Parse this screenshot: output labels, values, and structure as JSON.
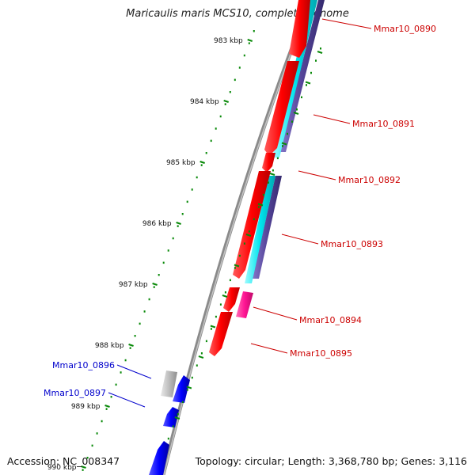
{
  "header": {
    "title": "Maricaulis maris MCS10, complete genome"
  },
  "ruler": {
    "unit_suffix": "kbp",
    "ticks": [
      {
        "kbp": 983,
        "label": "983 kbp"
      },
      {
        "kbp": 984,
        "label": "984 kbp"
      },
      {
        "kbp": 985,
        "label": "985 kbp"
      },
      {
        "kbp": 986,
        "label": "986 kbp"
      },
      {
        "kbp": 987,
        "label": "987 kbp"
      },
      {
        "kbp": 988,
        "label": "988 kbp"
      },
      {
        "kbp": 989,
        "label": "989 kbp"
      },
      {
        "kbp": 990,
        "label": "990 kbp"
      }
    ]
  },
  "genes": [
    {
      "id": "Mmar10_0890",
      "strand": "forward",
      "color": "#cc0000"
    },
    {
      "id": "Mmar10_0891",
      "strand": "forward",
      "color": "#cc0000"
    },
    {
      "id": "Mmar10_0892",
      "strand": "forward",
      "color": "#cc0000"
    },
    {
      "id": "Mmar10_0893",
      "strand": "forward",
      "color": "#cc0000"
    },
    {
      "id": "Mmar10_0894",
      "strand": "forward",
      "color": "#cc0000"
    },
    {
      "id": "Mmar10_0895",
      "strand": "forward",
      "color": "#cc0000"
    },
    {
      "id": "Mmar10_0896",
      "strand": "reverse",
      "color": "#0000cc"
    },
    {
      "id": "Mmar10_0897",
      "strand": "reverse",
      "color": "#0000cc"
    }
  ],
  "colors": {
    "cds": "#ff0000",
    "reverse_cds": "#0000ff",
    "cyan_track": "#00e5ee",
    "purple_track": "#554499",
    "magenta_feature": "#ff1493",
    "gray_feature": "#b0b0b0",
    "backbone": "#8a8a8a",
    "ruler_dots": "#0a8a0a"
  },
  "footer": {
    "accession": "Accession: NC_008347",
    "summary": "Topology: circular; Length: 3,368,780 bp; Genes: 3,116"
  }
}
